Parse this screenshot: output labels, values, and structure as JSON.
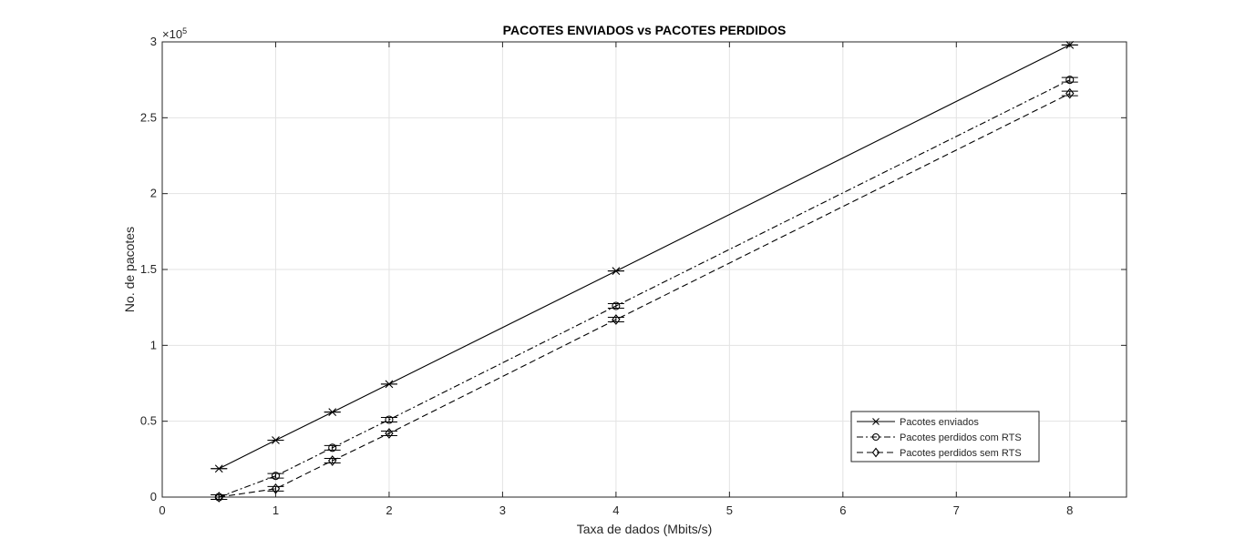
{
  "chart_data": {
    "type": "line",
    "title": "PACOTES ENVIADOS vs PACOTES PERDIDOS",
    "xlabel": "Taxa de dados (Mbits/s)",
    "ylabel": "No. de pacotes",
    "y_multiplier": "×10",
    "y_exponent": "5",
    "xlim": [
      0,
      8.5
    ],
    "ylim": [
      0,
      300000
    ],
    "x_ticks": [
      0,
      1,
      2,
      3,
      4,
      5,
      6,
      7,
      8
    ],
    "y_ticks": [
      0,
      50000,
      100000,
      150000,
      200000,
      250000,
      300000
    ],
    "y_tick_labels": [
      "0",
      "0.5",
      "1",
      "1.5",
      "2",
      "2.5",
      "3"
    ],
    "grid": true,
    "legend_position": "bottom-right",
    "x": [
      0.5,
      1,
      1.5,
      2,
      4,
      8
    ],
    "series": [
      {
        "name": "Pacotes enviados",
        "marker": "x",
        "dash": "solid",
        "error": 0,
        "values": [
          18750,
          37500,
          56000,
          74500,
          149000,
          298000
        ]
      },
      {
        "name": "Pacotes perdidos com RTS",
        "marker": "o",
        "dash": "dashdot",
        "error": 1500,
        "values": [
          0,
          14000,
          32500,
          51000,
          126000,
          275000
        ]
      },
      {
        "name": "Pacotes perdidos sem RTS",
        "marker": "diamond",
        "dash": "dashed",
        "error": 1500,
        "values": [
          0,
          5500,
          24000,
          42000,
          117000,
          266000
        ]
      }
    ]
  }
}
